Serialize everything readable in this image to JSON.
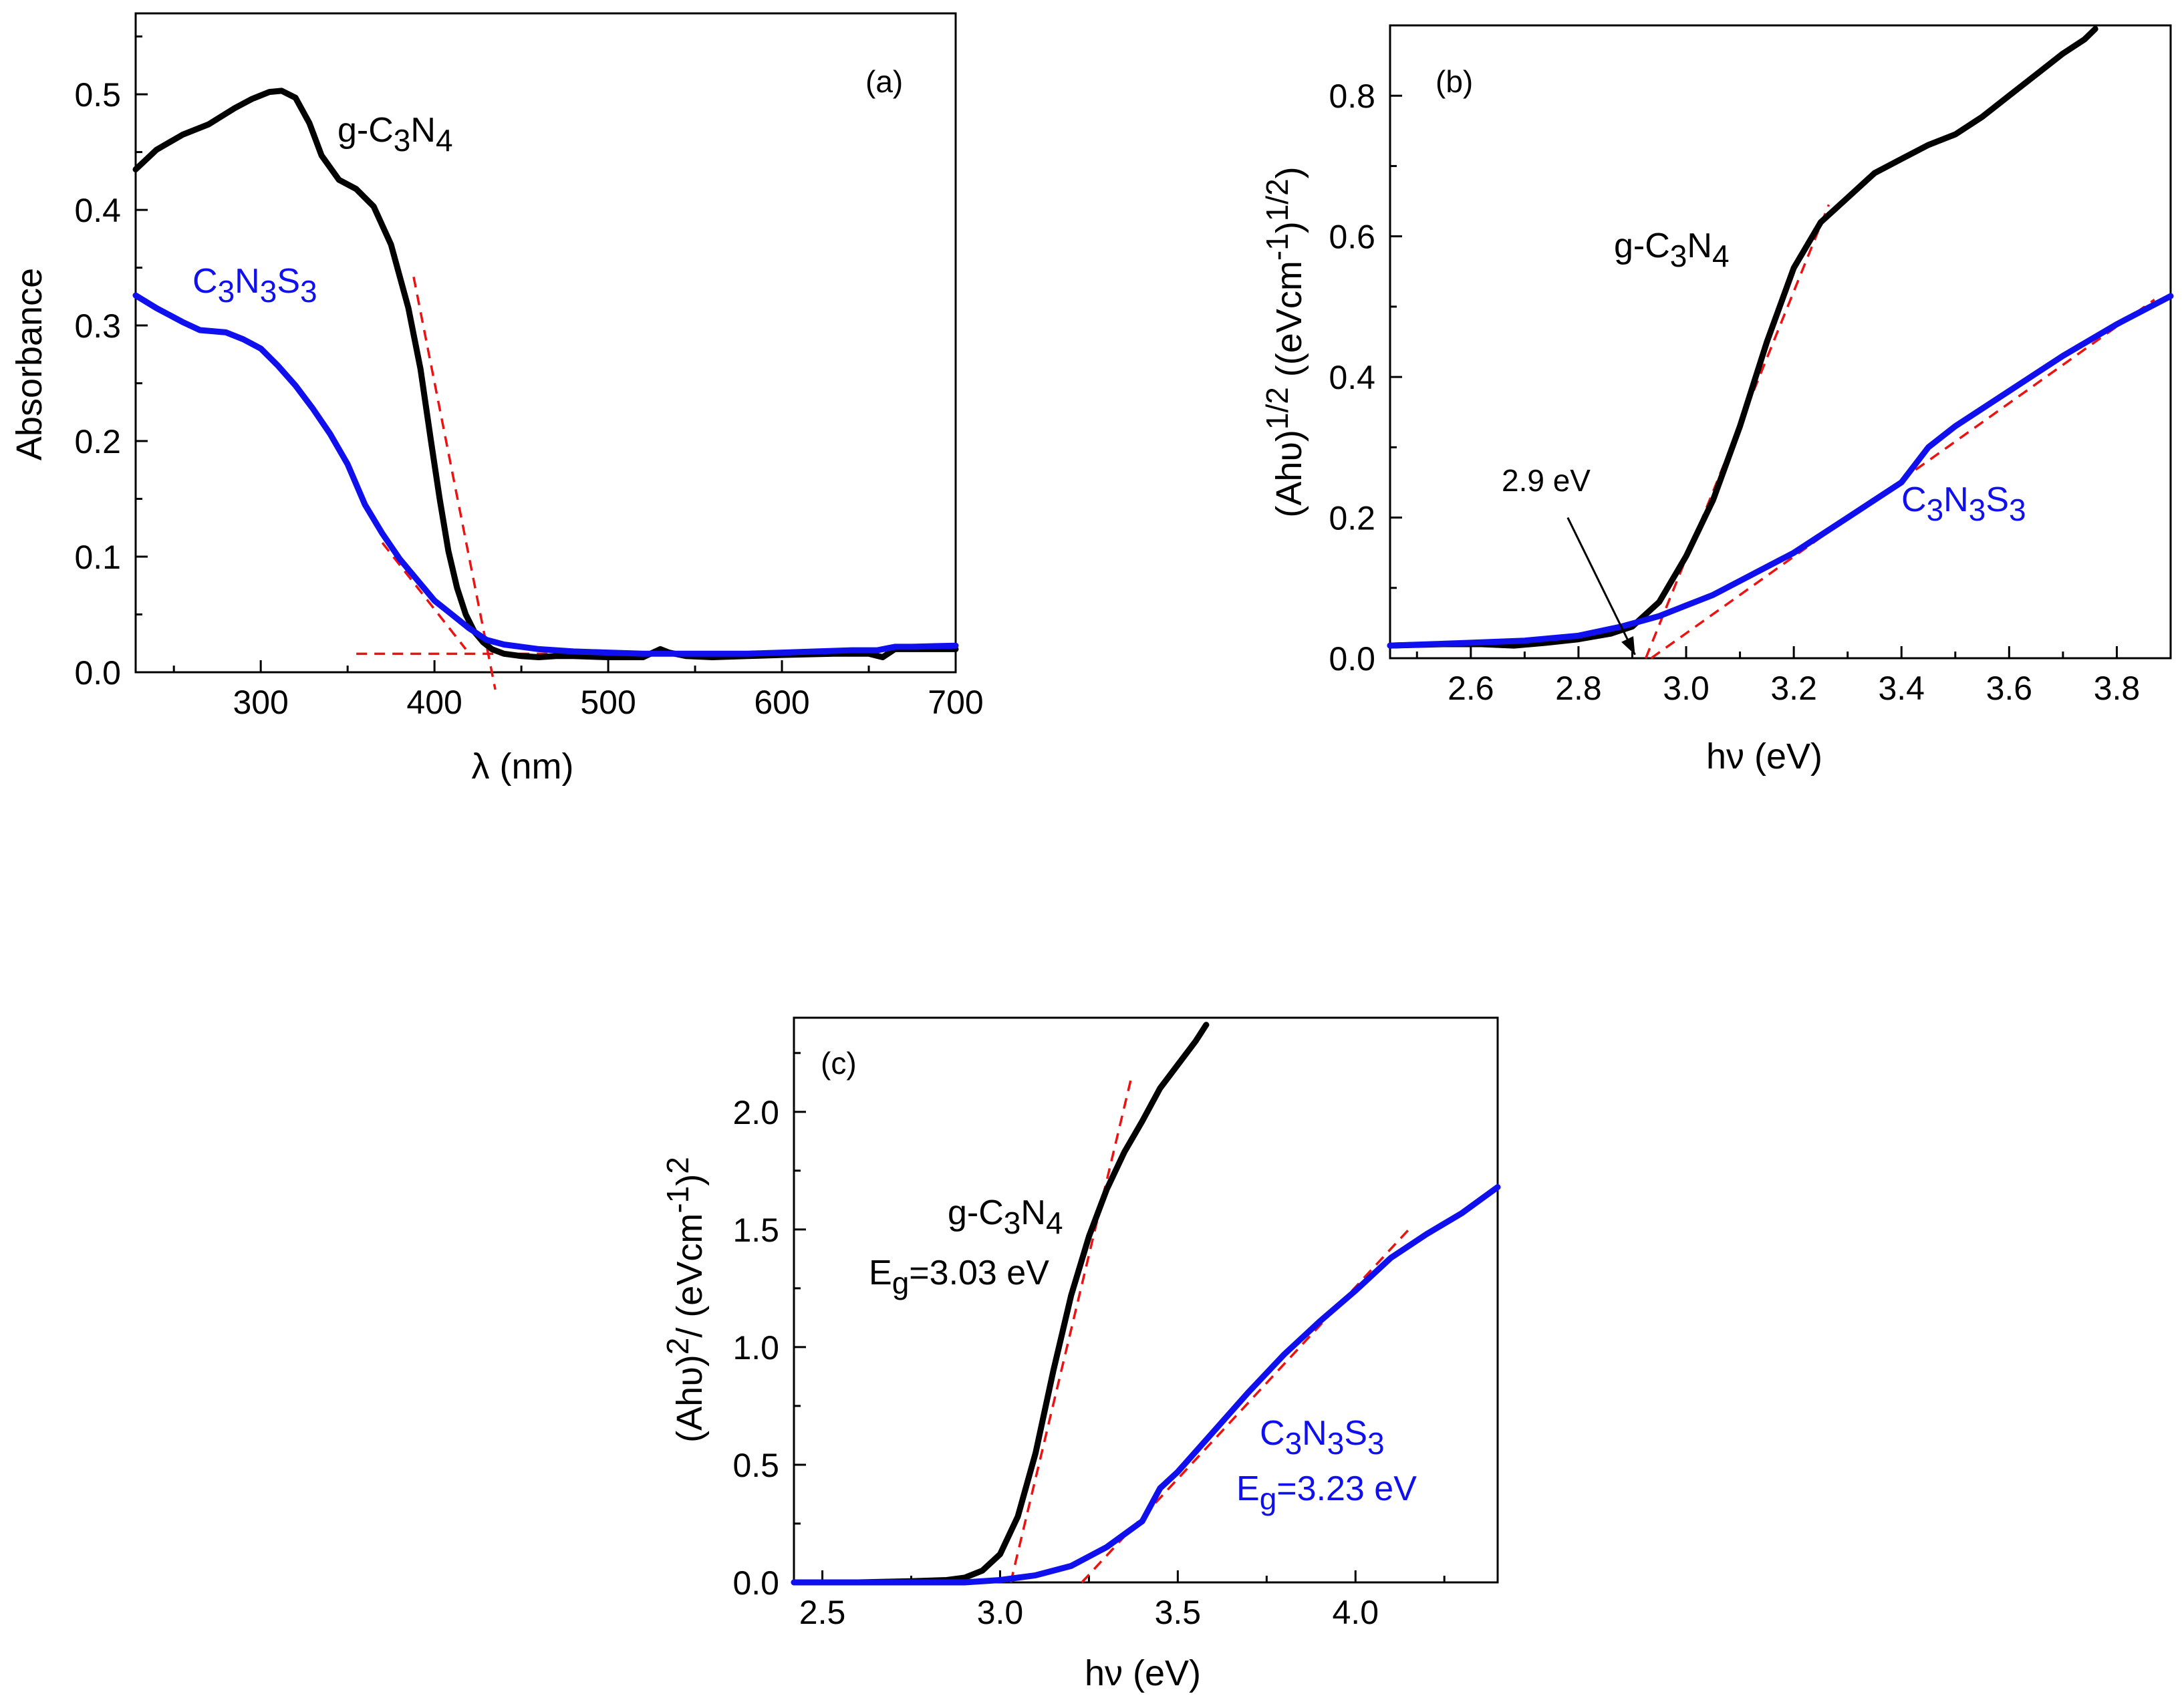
{
  "colors": {
    "g_c3n4": "#000000",
    "c3n3s3": "#1010ee",
    "fit": "#ee1111",
    "axis": "#000000"
  },
  "chart_data": [
    {
      "id": "a",
      "type": "line",
      "tag": "(a)",
      "xlabel": "λ (nm)",
      "ylabel": "Absorbance",
      "xlim": [
        228,
        700
      ],
      "ylim": [
        0,
        0.57
      ],
      "x_ticks": [
        300,
        400,
        500,
        600,
        700
      ],
      "y_ticks": [
        0.0,
        0.1,
        0.2,
        0.3,
        0.4,
        0.5
      ],
      "x_tick_labels": [
        "300",
        "400",
        "500",
        "600",
        "700"
      ],
      "y_tick_labels": [
        "0.0",
        "0.1",
        "0.2",
        "0.3",
        "0.4",
        "0.5"
      ],
      "series": [
        {
          "name": "g-C3N4",
          "color": "#000000",
          "x": [
            228,
            240,
            255,
            270,
            285,
            295,
            305,
            312,
            320,
            328,
            335,
            345,
            355,
            365,
            375,
            385,
            392,
            398,
            403,
            408,
            413,
            418,
            423,
            428,
            433,
            440,
            450,
            460,
            470,
            480,
            500,
            520,
            530,
            535,
            545,
            560,
            580,
            600,
            630,
            650,
            658,
            665,
            680,
            700
          ],
          "y": [
            0.435,
            0.452,
            0.465,
            0.474,
            0.488,
            0.496,
            0.502,
            0.503,
            0.497,
            0.475,
            0.447,
            0.426,
            0.418,
            0.403,
            0.37,
            0.315,
            0.262,
            0.2,
            0.15,
            0.105,
            0.073,
            0.05,
            0.035,
            0.026,
            0.02,
            0.016,
            0.014,
            0.013,
            0.014,
            0.014,
            0.013,
            0.013,
            0.02,
            0.017,
            0.014,
            0.013,
            0.014,
            0.015,
            0.016,
            0.016,
            0.013,
            0.02,
            0.02,
            0.02
          ]
        },
        {
          "name": "C3N3S3",
          "color": "#1010ee",
          "x": [
            228,
            240,
            255,
            265,
            280,
            290,
            300,
            310,
            320,
            330,
            340,
            350,
            360,
            370,
            380,
            390,
            400,
            410,
            420,
            430,
            440,
            450,
            460,
            470,
            480,
            500,
            520,
            540,
            560,
            580,
            600,
            620,
            640,
            655,
            665,
            675,
            700
          ],
          "y": [
            0.326,
            0.315,
            0.303,
            0.296,
            0.294,
            0.288,
            0.28,
            0.265,
            0.248,
            0.228,
            0.206,
            0.18,
            0.145,
            0.12,
            0.098,
            0.08,
            0.062,
            0.05,
            0.038,
            0.028,
            0.024,
            0.022,
            0.02,
            0.019,
            0.018,
            0.017,
            0.016,
            0.016,
            0.016,
            0.016,
            0.017,
            0.018,
            0.019,
            0.019,
            0.022,
            0.022,
            0.023
          ]
        }
      ],
      "fit_lines": [
        {
          "x": [
            388,
            435
          ],
          "y": [
            0.342,
            -0.015
          ]
        },
        {
          "x": [
            370,
            418
          ],
          "y": [
            0.112,
            0.02
          ]
        },
        {
          "x": [
            355,
            520
          ],
          "y": [
            0.016,
            0.016
          ]
        }
      ],
      "labels": [
        {
          "prefix": "g-C",
          "sub1": "3",
          "mid": "N",
          "sub2": "4",
          "color": "#000000"
        },
        {
          "prefix": "C",
          "sub1": "3",
          "mid": "N",
          "sub2": "3",
          "tail": "S",
          "sub3": "3",
          "color": "#1010ee"
        }
      ]
    },
    {
      "id": "b",
      "type": "line",
      "tag": "(b)",
      "xlabel": "hν (eV)",
      "ylabel": "(Ahυ)^1/2 ((eVcm^-1)^1/2)",
      "ylabel_parts": {
        "p1": "(Ahυ)",
        "s1": "1/2",
        "p2": " ((eVcm",
        "s2": "-1",
        "p3": ")",
        "s3": "1/2",
        "p4": ")"
      },
      "xlim": [
        2.45,
        3.9
      ],
      "ylim": [
        0,
        0.9
      ],
      "x_ticks": [
        2.6,
        2.8,
        3.0,
        3.2,
        3.4,
        3.6,
        3.8
      ],
      "y_ticks": [
        0.0,
        0.2,
        0.4,
        0.6,
        0.8
      ],
      "x_tick_labels": [
        "2.6",
        "2.8",
        "3.0",
        "3.2",
        "3.4",
        "3.6",
        "3.8"
      ],
      "y_tick_labels": [
        "0.0",
        "0.2",
        "0.4",
        "0.6",
        "0.8"
      ],
      "series": [
        {
          "name": "g-C3N4",
          "color": "#000000",
          "x": [
            2.45,
            2.55,
            2.62,
            2.68,
            2.74,
            2.8,
            2.86,
            2.9,
            2.95,
            3.0,
            3.05,
            3.1,
            3.15,
            3.2,
            3.25,
            3.3,
            3.35,
            3.4,
            3.45,
            3.5,
            3.55,
            3.6,
            3.65,
            3.7,
            3.74,
            3.76
          ],
          "y": [
            0.018,
            0.02,
            0.02,
            0.018,
            0.022,
            0.027,
            0.035,
            0.045,
            0.08,
            0.145,
            0.225,
            0.33,
            0.45,
            0.555,
            0.62,
            0.655,
            0.69,
            0.71,
            0.73,
            0.745,
            0.77,
            0.8,
            0.83,
            0.86,
            0.88,
            0.895
          ]
        },
        {
          "name": "C3N3S3",
          "color": "#1010ee",
          "x": [
            2.45,
            2.6,
            2.7,
            2.8,
            2.88,
            2.95,
            3.0,
            3.05,
            3.1,
            3.2,
            3.3,
            3.4,
            3.45,
            3.5,
            3.6,
            3.7,
            3.8,
            3.9
          ],
          "y": [
            0.018,
            0.022,
            0.025,
            0.032,
            0.045,
            0.06,
            0.075,
            0.09,
            0.11,
            0.15,
            0.2,
            0.25,
            0.3,
            0.33,
            0.38,
            0.43,
            0.475,
            0.515
          ]
        }
      ],
      "fit_lines": [
        {
          "x": [
            2.925,
            3.265
          ],
          "y": [
            0.0,
            0.645
          ]
        },
        {
          "x": [
            2.935,
            3.87
          ],
          "y": [
            0.0,
            0.51
          ]
        }
      ],
      "annotation": {
        "text": "2.9 eV",
        "arrow_from": [
          2.78,
          0.2
        ],
        "arrow_to": [
          2.905,
          0.005
        ]
      },
      "labels": [
        {
          "prefix": "g-C",
          "sub1": "3",
          "mid": "N",
          "sub2": "4",
          "color": "#000000"
        },
        {
          "prefix": "C",
          "sub1": "3",
          "mid": "N",
          "sub2": "3",
          "tail": "S",
          "sub3": "3",
          "color": "#1010ee"
        }
      ]
    },
    {
      "id": "c",
      "type": "line",
      "tag": "(c)",
      "xlabel": "hν (eV)",
      "ylabel": "(Ahυ)^2/ (eVcm^-1)^2",
      "ylabel_parts": {
        "p1": "(Ahυ)",
        "s1": "2",
        "p2": "/ (eVcm",
        "s2": "-1",
        "p3": ")",
        "s3": "2",
        "p4": ""
      },
      "xlim": [
        2.42,
        4.4
      ],
      "ylim": [
        0,
        2.4
      ],
      "x_ticks": [
        2.5,
        3.0,
        3.5,
        4.0
      ],
      "y_ticks": [
        0.0,
        0.5,
        1.0,
        1.5,
        2.0
      ],
      "x_tick_labels": [
        "2.5",
        "3.0",
        "3.5",
        "4.0"
      ],
      "y_tick_labels": [
        "0.0",
        "0.5",
        "1.0",
        "1.5",
        "2.0"
      ],
      "series": [
        {
          "name": "g-C3N4",
          "color": "#000000",
          "x": [
            2.42,
            2.6,
            2.75,
            2.85,
            2.9,
            2.95,
            3.0,
            3.05,
            3.1,
            3.15,
            3.2,
            3.25,
            3.3,
            3.35,
            3.4,
            3.45,
            3.5,
            3.55,
            3.58,
            3.6
          ],
          "y": [
            0.0,
            0.0,
            0.005,
            0.01,
            0.02,
            0.05,
            0.12,
            0.28,
            0.55,
            0.9,
            1.22,
            1.47,
            1.67,
            1.83,
            1.96,
            2.1,
            2.2,
            2.3,
            2.37,
            2.42
          ]
        },
        {
          "name": "C3N3S3",
          "color": "#1010ee",
          "x": [
            2.42,
            2.9,
            3.0,
            3.1,
            3.2,
            3.3,
            3.4,
            3.45,
            3.5,
            3.6,
            3.7,
            3.8,
            3.9,
            4.0,
            4.1,
            4.2,
            4.3,
            4.4
          ],
          "y": [
            0.0,
            0.0,
            0.01,
            0.03,
            0.07,
            0.15,
            0.26,
            0.4,
            0.47,
            0.64,
            0.81,
            0.97,
            1.11,
            1.24,
            1.38,
            1.48,
            1.57,
            1.68
          ]
        }
      ],
      "fit_lines": [
        {
          "x": [
            3.03,
            3.37
          ],
          "y": [
            0.0,
            2.15
          ]
        },
        {
          "x": [
            3.23,
            4.15
          ],
          "y": [
            0.0,
            1.5
          ]
        }
      ],
      "labels": [
        {
          "prefix": "g-C",
          "sub1": "3",
          "mid": "N",
          "sub2": "4",
          "color": "#000000"
        },
        {
          "eg_prefix": "E",
          "eg_sub": "g",
          "eg_value": "=3.03 eV",
          "color": "#000000"
        },
        {
          "prefix": "C",
          "sub1": "3",
          "mid": "N",
          "sub2": "3",
          "tail": "S",
          "sub3": "3",
          "color": "#1010ee"
        },
        {
          "eg_prefix": "E",
          "eg_sub": "g",
          "eg_value": "=3.23 eV",
          "color": "#1010ee"
        }
      ]
    }
  ]
}
